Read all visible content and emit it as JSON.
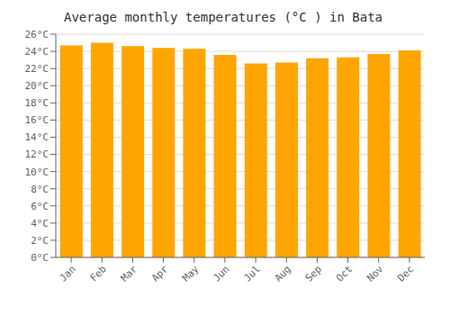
{
  "chart_data": {
    "type": "bar",
    "title": "Average monthly temperatures (°C ) in Bata",
    "categories": [
      "Jan",
      "Feb",
      "Mar",
      "Apr",
      "May",
      "Jun",
      "Jul",
      "Aug",
      "Sep",
      "Oct",
      "Nov",
      "Dec"
    ],
    "values": [
      24.7,
      25.0,
      24.6,
      24.4,
      24.3,
      23.6,
      22.6,
      22.7,
      23.2,
      23.3,
      23.7,
      24.1
    ],
    "color": "#FFA500",
    "ylim": [
      0,
      26
    ],
    "yticks": [
      {
        "value": 0,
        "label": "0°C"
      },
      {
        "value": 2,
        "label": "2°C"
      },
      {
        "value": 4,
        "label": "4°C"
      },
      {
        "value": 6,
        "label": "6°C"
      },
      {
        "value": 8,
        "label": "8°C"
      },
      {
        "value": 10,
        "label": "10°C"
      },
      {
        "value": 12,
        "label": "12°C"
      },
      {
        "value": 14,
        "label": "14°C"
      },
      {
        "value": 16,
        "label": "16°C"
      },
      {
        "value": 18,
        "label": "18°C"
      },
      {
        "value": 20,
        "label": "20°C"
      },
      {
        "value": 22,
        "label": "22°C"
      },
      {
        "value": 24,
        "label": "24°C"
      },
      {
        "value": 26,
        "label": "26°C"
      }
    ],
    "grid": true
  }
}
